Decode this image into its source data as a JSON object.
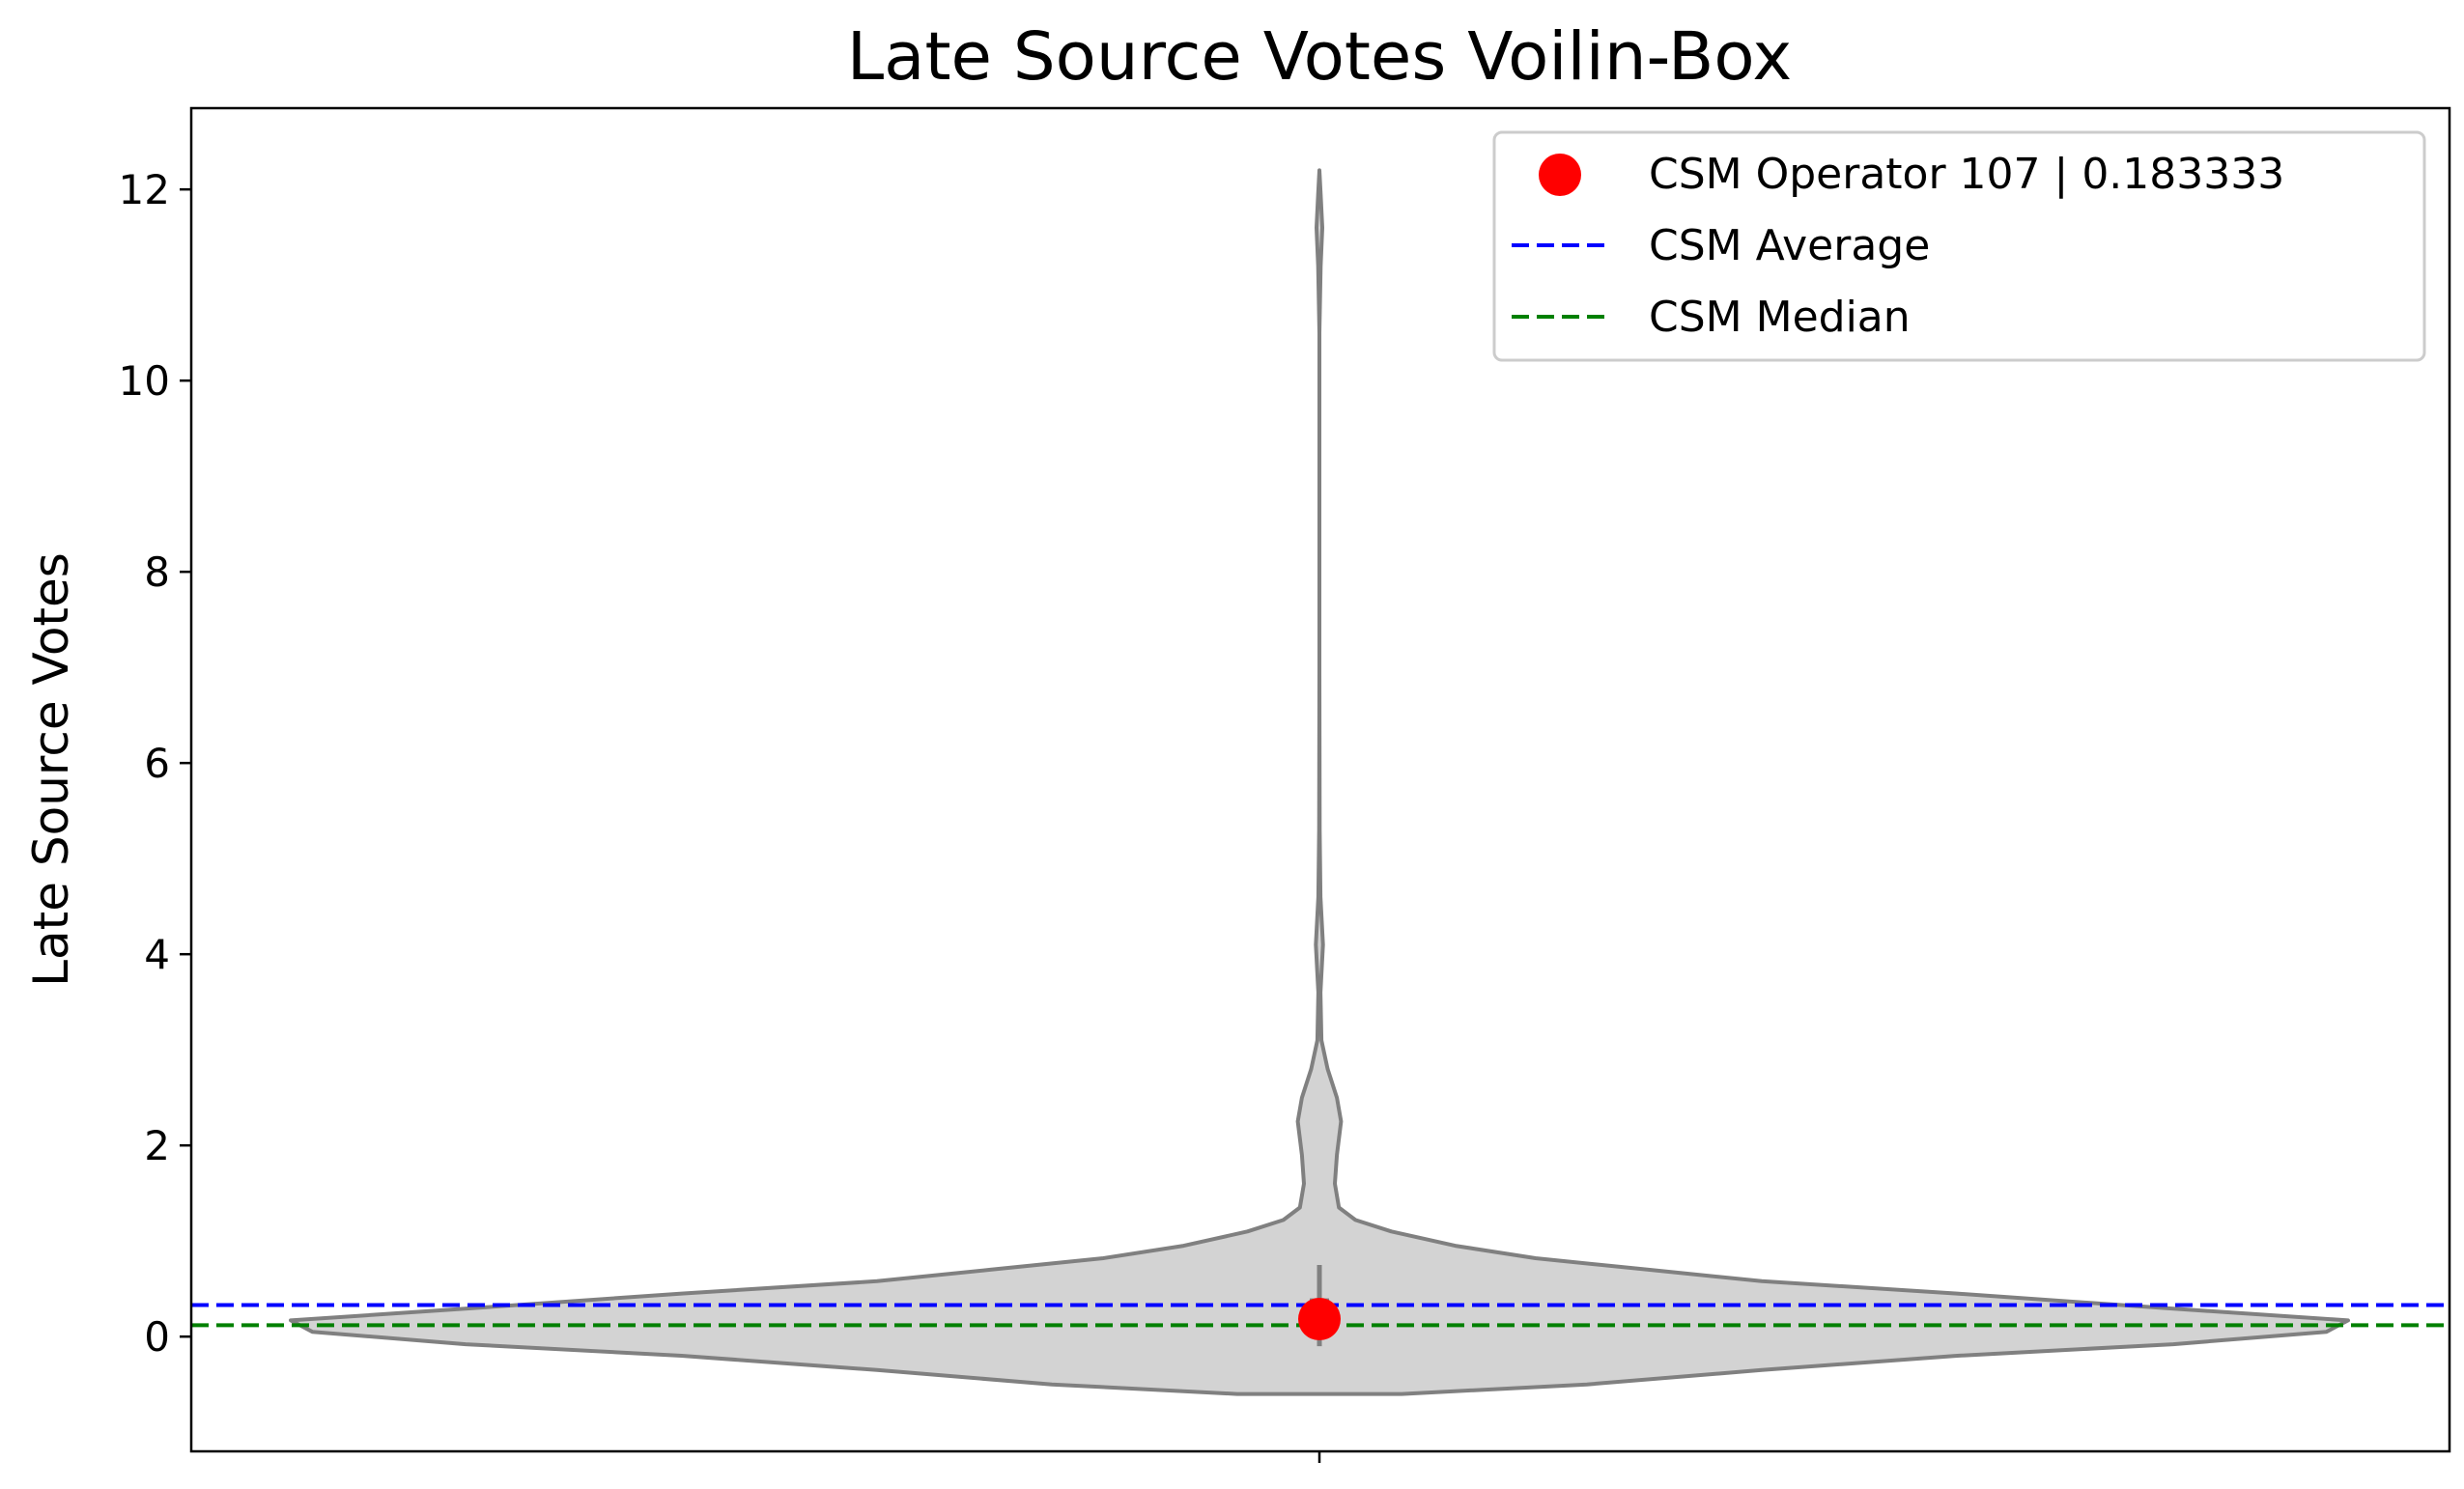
{
  "chart_data": {
    "type": "violin",
    "title": "Late Source Votes Voilin-Box",
    "xlabel": "",
    "ylabel": "Late Source Votes",
    "ylim": [
      -1.2,
      12.85
    ],
    "yticks": [
      0,
      2,
      4,
      6,
      8,
      10,
      12
    ],
    "grid": false,
    "legend_position": "top-right",
    "violin": {
      "fill": "#d3d3d3",
      "edge": "#808080",
      "density_profile": [
        {
          "y": -0.6,
          "w": 0.0
        },
        {
          "y": -0.6,
          "w": 0.08
        },
        {
          "y": -0.5,
          "w": 0.26
        },
        {
          "y": -0.35,
          "w": 0.43
        },
        {
          "y": -0.2,
          "w": 0.62
        },
        {
          "y": -0.08,
          "w": 0.83
        },
        {
          "y": 0.05,
          "w": 0.979
        },
        {
          "y": 0.17,
          "w": 1.0
        },
        {
          "y": 0.3,
          "w": 0.82
        },
        {
          "y": 0.45,
          "w": 0.62
        },
        {
          "y": 0.58,
          "w": 0.43
        },
        {
          "y": 0.7,
          "w": 0.32
        },
        {
          "y": 0.82,
          "w": 0.21
        },
        {
          "y": 0.95,
          "w": 0.132
        },
        {
          "y": 1.1,
          "w": 0.07
        },
        {
          "y": 1.22,
          "w": 0.035
        },
        {
          "y": 1.35,
          "w": 0.019
        },
        {
          "y": 1.6,
          "w": 0.015
        },
        {
          "y": 1.9,
          "w": 0.017
        },
        {
          "y": 2.25,
          "w": 0.021
        },
        {
          "y": 2.5,
          "w": 0.017
        },
        {
          "y": 2.8,
          "w": 0.008
        },
        {
          "y": 3.1,
          "w": 0.002
        },
        {
          "y": 3.6,
          "w": 0.001
        },
        {
          "y": 4.1,
          "w": 0.0035
        },
        {
          "y": 4.6,
          "w": 0.001
        },
        {
          "y": 5.3,
          "w": 0.0003
        },
        {
          "y": 7.0,
          "w": 0.0
        },
        {
          "y": 10.5,
          "w": 0.0
        },
        {
          "y": 11.2,
          "w": 0.0012
        },
        {
          "y": 11.6,
          "w": 0.0028
        },
        {
          "y": 11.95,
          "w": 0.0012
        },
        {
          "y": 12.2,
          "w": 0.0
        }
      ],
      "box": {
        "q1": 0.0,
        "q3": 0.4,
        "whisker_low": -0.1,
        "whisker_high": 0.75
      }
    },
    "operator_point": {
      "name": "CSM Operator 107  |  0.183333",
      "value": 0.183333,
      "color": "#ff0000"
    },
    "reference_lines": [
      {
        "name": "CSM Average",
        "value": 0.33,
        "color": "#0000ff",
        "style": "dashed"
      },
      {
        "name": "CSM Median",
        "value": 0.12,
        "color": "#008000",
        "style": "dashed"
      }
    ]
  }
}
